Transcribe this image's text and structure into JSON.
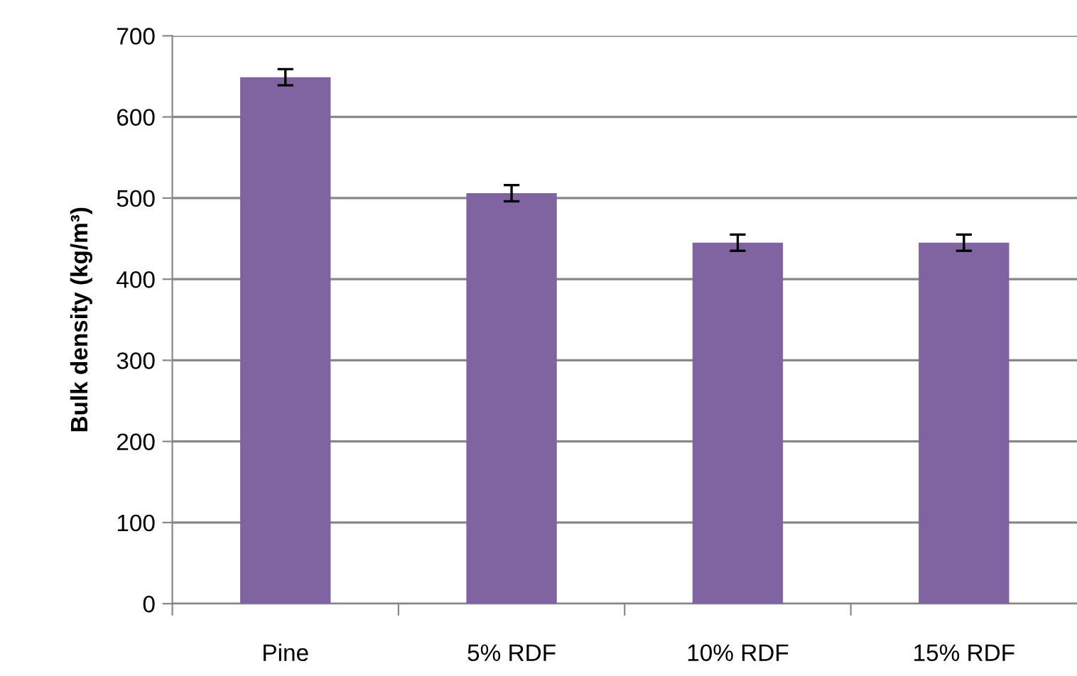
{
  "chart_data": {
    "type": "bar",
    "ylabel": "Bulk density (kg/m³)",
    "categories": [
      "Pine",
      "5% RDF",
      "10% RDF",
      "15% RDF"
    ],
    "values": [
      649,
      506,
      445,
      445
    ],
    "errors": [
      10,
      10,
      10,
      10
    ],
    "color": "#8064a2",
    "ylim": [
      0,
      700
    ],
    "yticks": [
      0,
      100,
      200,
      300,
      400,
      500,
      600,
      700
    ],
    "grid": "y"
  }
}
